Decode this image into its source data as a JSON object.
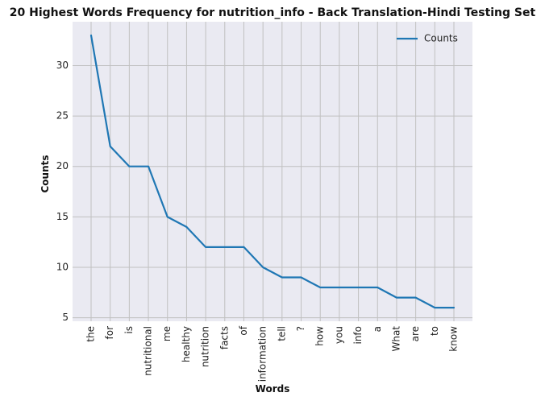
{
  "chart_data": {
    "type": "line",
    "title": "20 Highest Words Frequency for nutrition_info - Back Translation-Hindi Testing Set",
    "xlabel": "Words",
    "ylabel": "Counts",
    "categories": [
      "the",
      "for",
      "is",
      "nutritional",
      "me",
      "healthy",
      "nutrition",
      "facts",
      "of",
      "information",
      "tell",
      "?",
      "how",
      "you",
      "info",
      "a",
      "What",
      "are",
      "to",
      "know"
    ],
    "series": [
      {
        "name": "Counts",
        "values": [
          33,
          22,
          20,
          20,
          15,
          14,
          12,
          12,
          12,
          10,
          9,
          9,
          8,
          8,
          8,
          8,
          7,
          7,
          6,
          6
        ]
      }
    ],
    "yticks": [
      5,
      10,
      15,
      20,
      25,
      30
    ],
    "ylim": [
      4.65,
      34.35
    ],
    "grid": true,
    "legend_position": "top-right",
    "colors": {
      "line": "#1f77b4",
      "background": "#eaeaf2",
      "grid": "#c0c0c0"
    }
  }
}
